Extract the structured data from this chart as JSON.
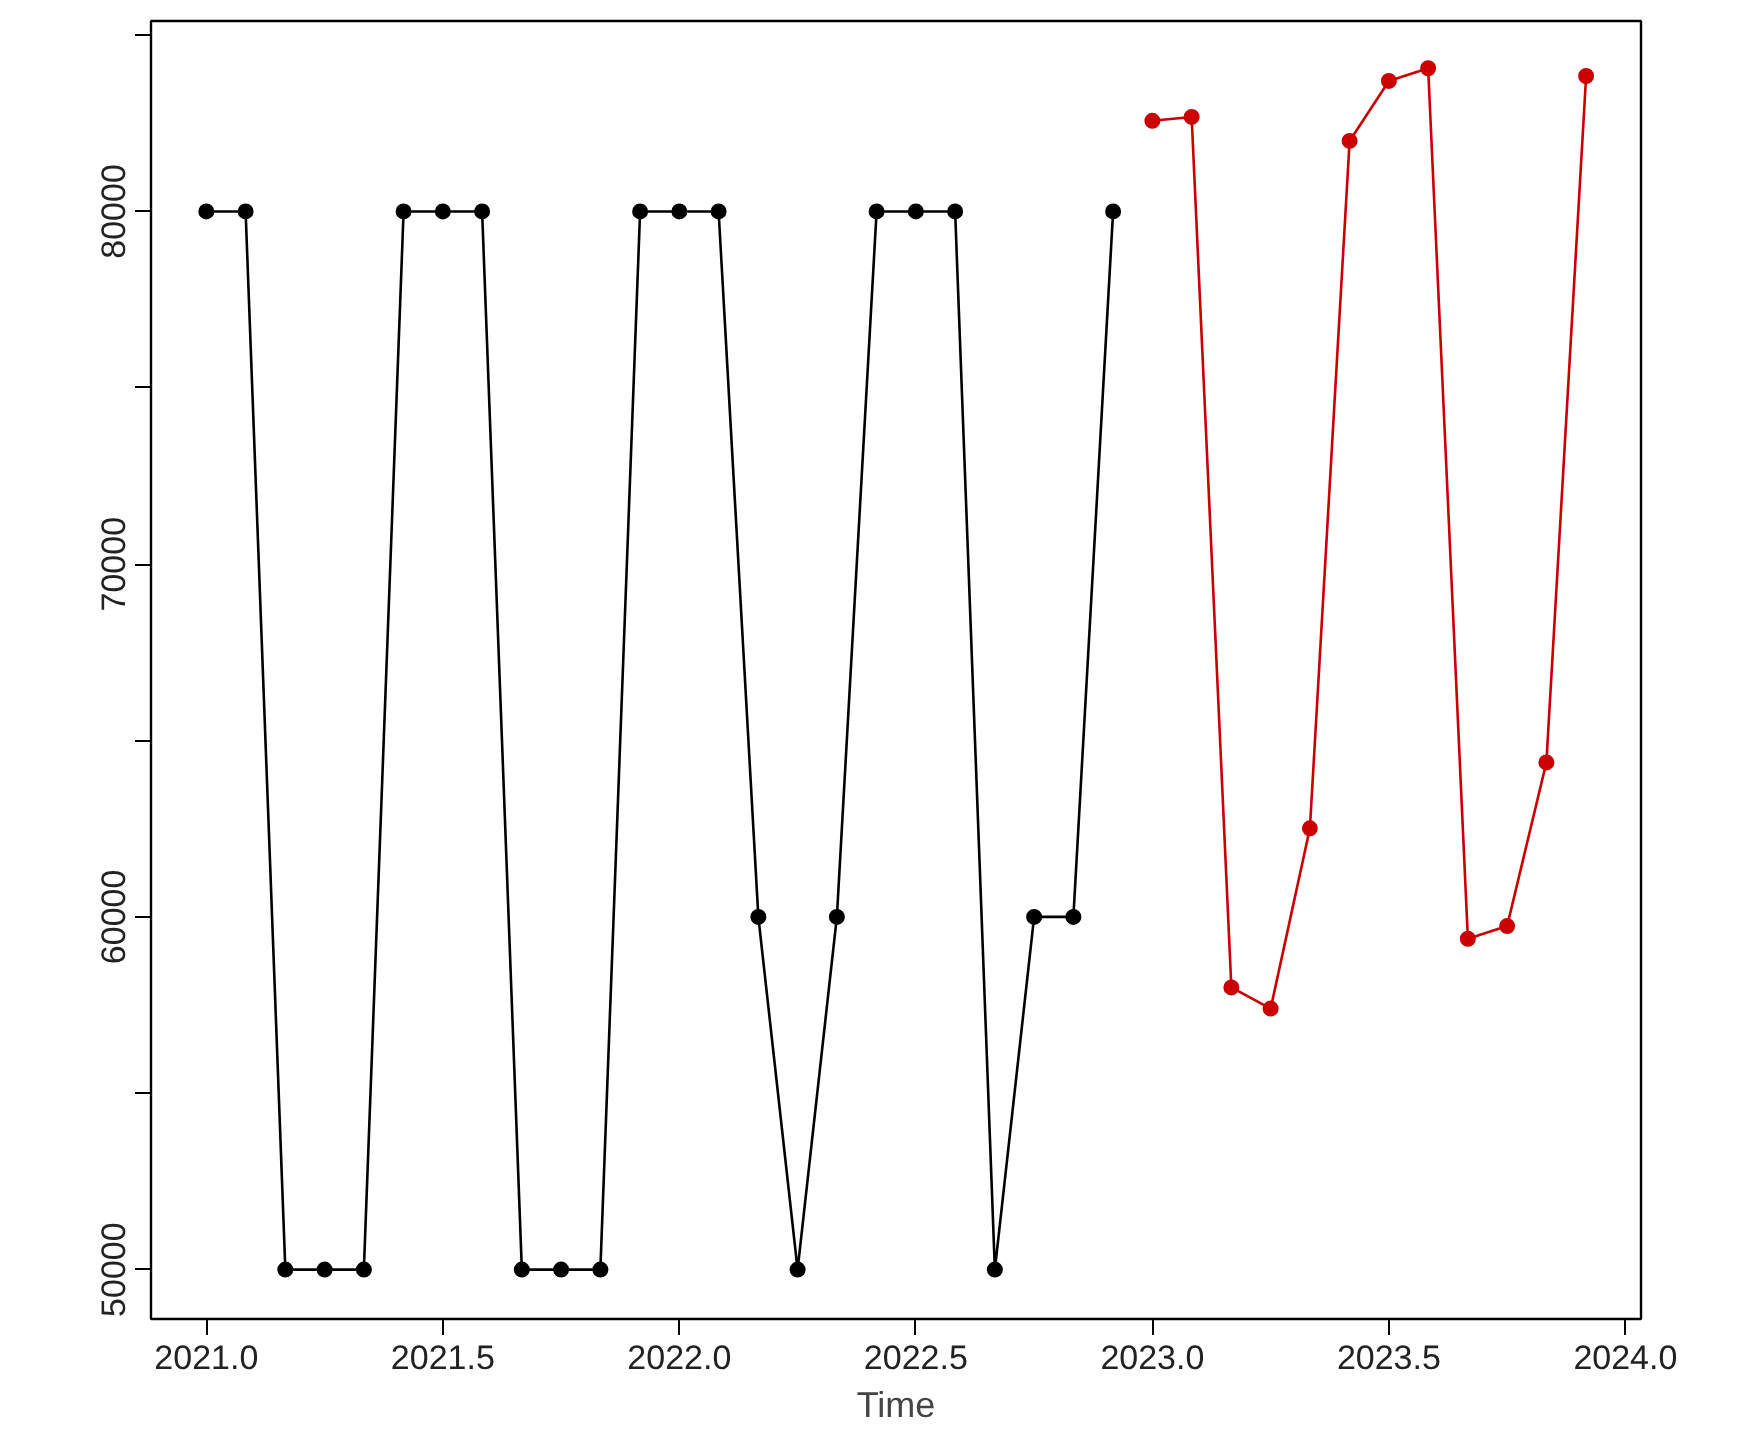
{
  "chart_data": {
    "type": "line",
    "xlabel": "Time",
    "marker": "circle",
    "line_style": "solid",
    "grid": false,
    "xlim": [
      2020.883,
      2024.033
    ],
    "ylim": [
      48600,
      85400
    ],
    "xticks": [
      {
        "value": 2021,
        "label": "2021.0"
      },
      {
        "value": 2021.5,
        "label": "2021.5"
      },
      {
        "value": 2022,
        "label": "2022.0"
      },
      {
        "value": 2022.5,
        "label": "2022.5"
      },
      {
        "value": 2023,
        "label": "2023.0"
      },
      {
        "value": 2023.5,
        "label": "2023.5"
      },
      {
        "value": 2024,
        "label": "2024.0"
      }
    ],
    "yticks": [
      50000,
      {
        "value": 55000,
        "label": null
      },
      60000,
      {
        "value": 65000,
        "label": null
      },
      70000,
      {
        "value": 75000,
        "label": null
      },
      80000,
      {
        "value": 85000,
        "label": null
      }
    ],
    "series": [
      {
        "color": "#000000",
        "x": [
          2021.0,
          2021.083,
          2021.167,
          2021.25,
          2021.333,
          2021.417,
          2021.5,
          2021.583,
          2021.667,
          2021.75,
          2021.833,
          2021.917,
          2022.0,
          2022.083,
          2022.167,
          2022.25,
          2022.333,
          2022.417,
          2022.5,
          2022.583,
          2022.667,
          2022.75,
          2022.833,
          2022.917
        ],
        "values": [
          80000,
          80000,
          50000,
          50000,
          50000,
          80000,
          80000,
          80000,
          50000,
          50000,
          50000,
          80000,
          80000,
          80000,
          60000,
          50000,
          60000,
          80000,
          80000,
          80000,
          50000,
          60000,
          60000,
          80000
        ]
      },
      {
        "color": "#cc0000",
        "x": [
          2023.0,
          2023.083,
          2023.167,
          2023.25,
          2023.333,
          2023.417,
          2023.5,
          2023.583,
          2023.667,
          2023.75,
          2023.833,
          2023.917
        ],
        "values": [
          82570,
          82680,
          58000,
          57400,
          62510,
          82000,
          83700,
          84060,
          59380,
          59740,
          64380,
          83840
        ]
      }
    ]
  }
}
